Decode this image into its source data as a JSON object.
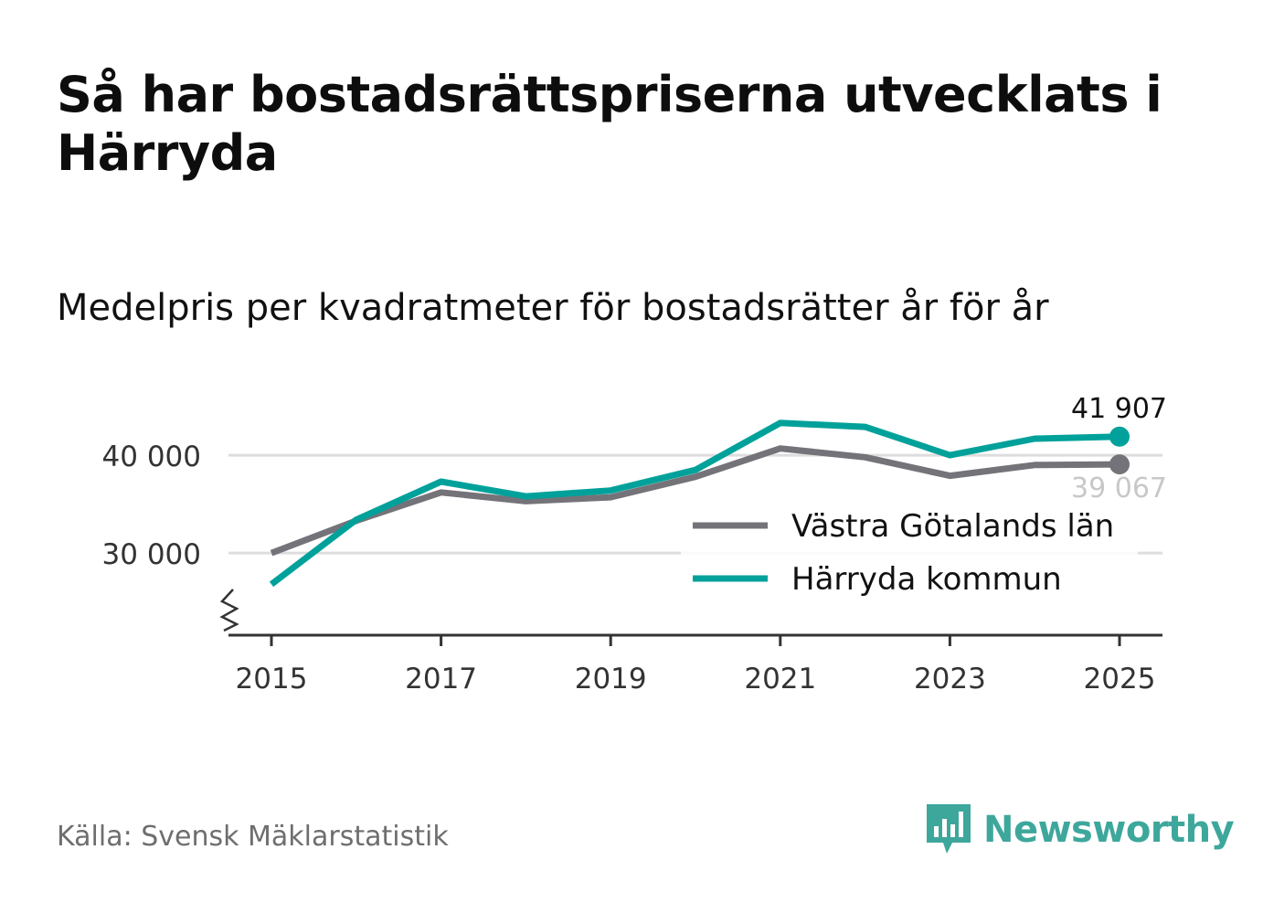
{
  "title": "Så har bostadsrättspriserna utvecklats i Härryda",
  "subtitle": "Medelpris per kvadratmeter för bostadsrätter år för år",
  "source": "Källa: Svensk Mäklarstatistik",
  "brand": {
    "name": "Newsworthy",
    "icon": "newsworthy-logo-icon",
    "color": "#3ea79c"
  },
  "chart_data": {
    "type": "line",
    "title": "Så har bostadsrättspriserna utvecklats i Härryda",
    "subtitle": "Medelpris per kvadratmeter för bostadsrätter år för år",
    "x": [
      2015,
      2016,
      2017,
      2018,
      2019,
      2020,
      2021,
      2022,
      2023,
      2024,
      2025
    ],
    "x_ticks": [
      "2015",
      "2017",
      "2019",
      "2021",
      "2023",
      "2025"
    ],
    "y_ticks": [
      30000,
      40000
    ],
    "y_tick_labels": [
      "30 000",
      "40 000"
    ],
    "ylim": [
      23000,
      44500
    ],
    "y_axis_break": true,
    "grid": true,
    "legend_position": "right",
    "series": [
      {
        "name": "Västra Götalands län",
        "color": "#747379",
        "values": [
          30000,
          33300,
          36200,
          35300,
          35700,
          37800,
          40700,
          39800,
          37900,
          39000,
          39067
        ],
        "end_label": "39 067"
      },
      {
        "name": "Härryda kommun",
        "color": "#00a19a",
        "values": [
          26800,
          33400,
          37300,
          35800,
          36400,
          38500,
          43300,
          42900,
          40000,
          41700,
          41907
        ],
        "end_label": "41 907"
      }
    ]
  }
}
